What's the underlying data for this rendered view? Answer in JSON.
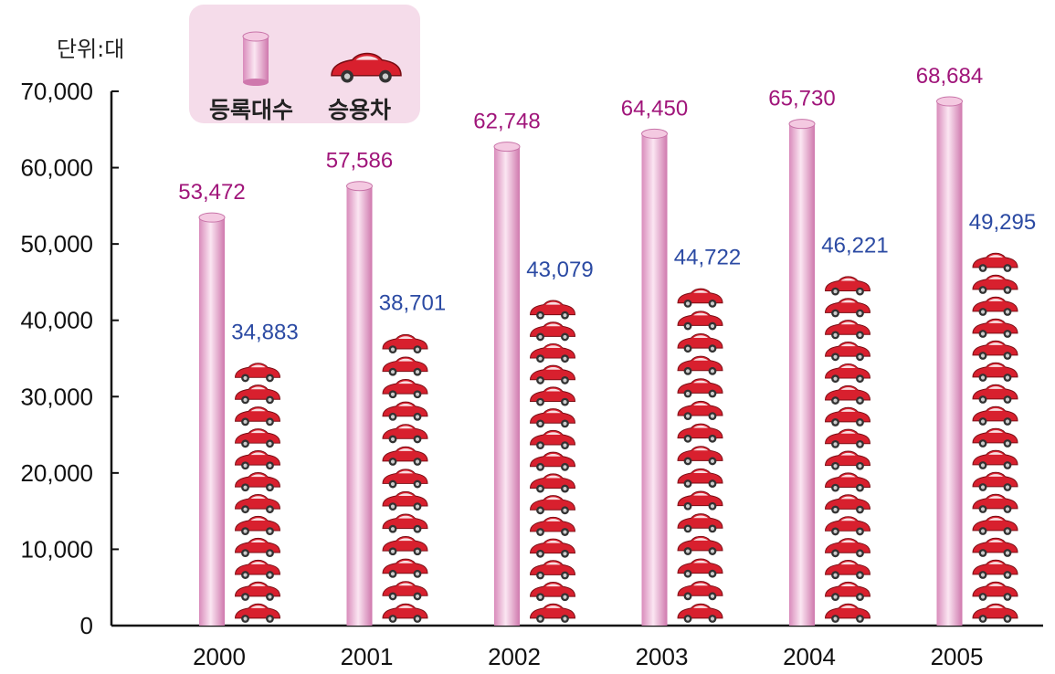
{
  "chart_data": {
    "type": "bar",
    "unit_label": "단위:대",
    "categories": [
      "2000",
      "2001",
      "2002",
      "2003",
      "2004",
      "2005"
    ],
    "series": [
      {
        "name": "등록대수",
        "values": [
          53472,
          57586,
          62748,
          64450,
          65730,
          68684
        ],
        "color": "#e7a6cc",
        "value_color": "#a0157a"
      },
      {
        "name": "승용차",
        "values": [
          34883,
          38701,
          43079,
          44722,
          46221,
          49295
        ],
        "color": "#d8202e",
        "value_color": "#2b4aa3"
      }
    ],
    "value_labels": {
      "total": [
        "53,472",
        "57,586",
        "62,748",
        "64,450",
        "65,730",
        "68,684"
      ],
      "car": [
        "34,883",
        "38,701",
        "43,079",
        "44,722",
        "46,221",
        "49,295"
      ]
    },
    "yticks": [
      "0",
      "10,000",
      "20,000",
      "30,000",
      "40,000",
      "50,000",
      "60,000",
      "70,000"
    ],
    "ylim": [
      0,
      70000
    ],
    "legend": [
      "등록대수",
      "승용차"
    ],
    "legend_position": "top-left",
    "grid": false
  }
}
